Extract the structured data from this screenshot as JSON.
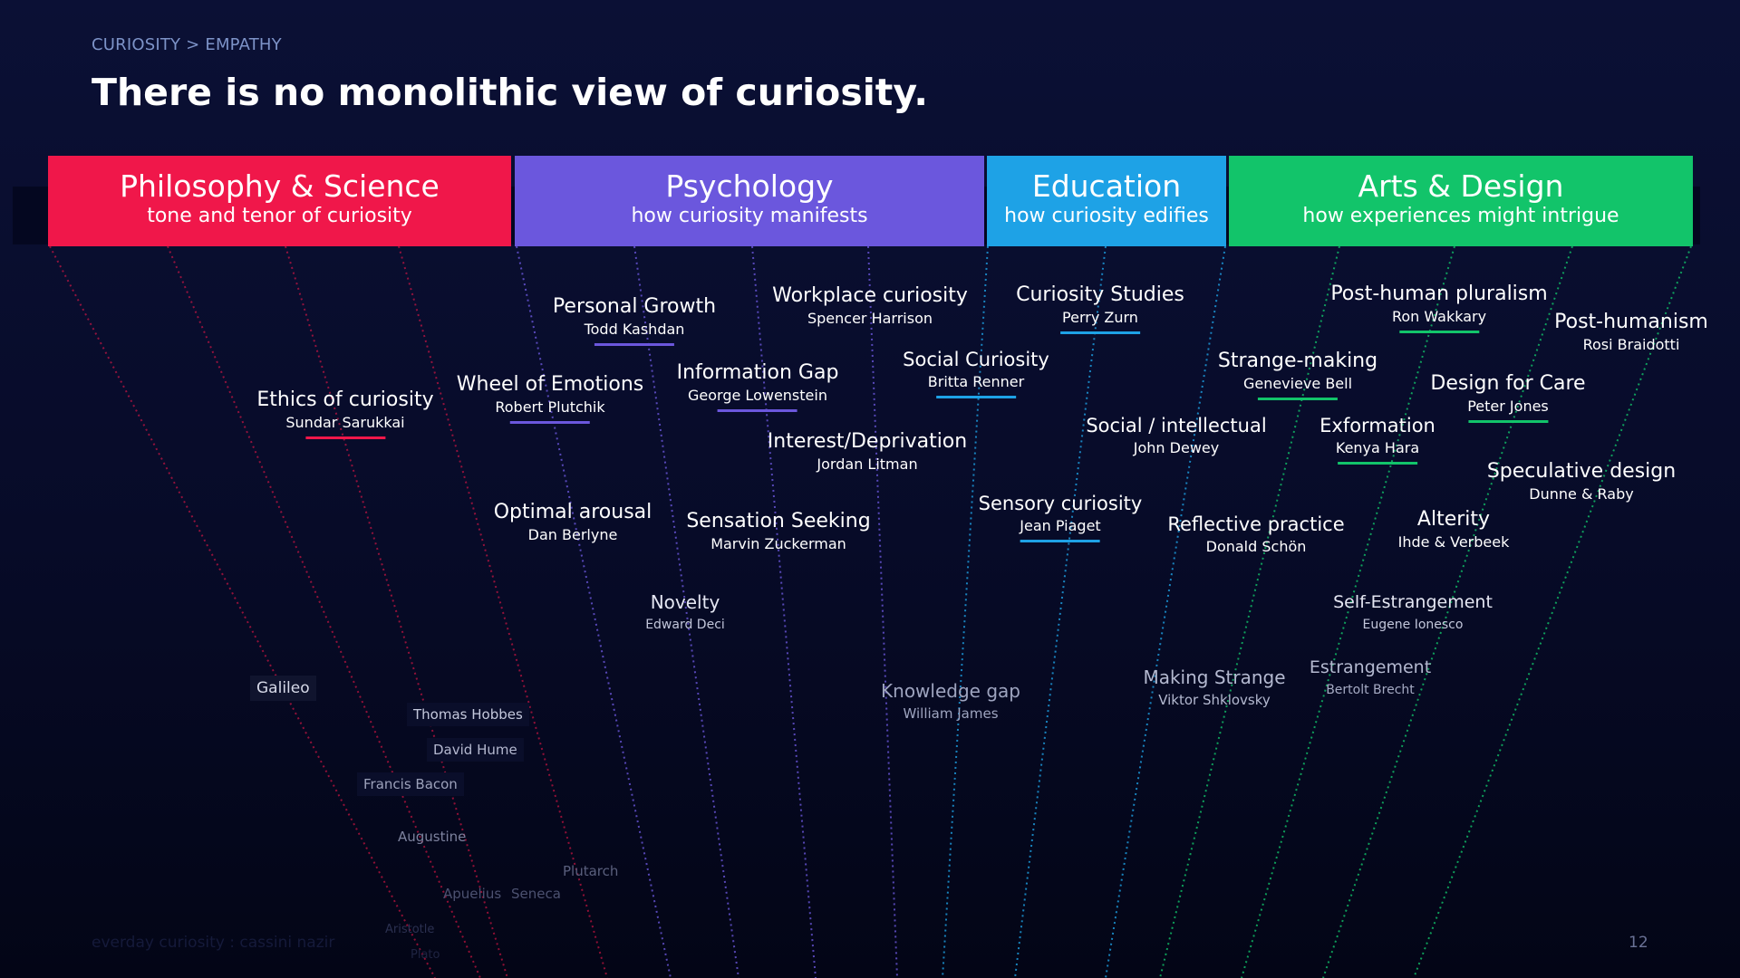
{
  "header": {
    "breadcrumb": "CURIOSITY > EMPATHY",
    "title": "There is no monolithic view of curiosity."
  },
  "categories": [
    {
      "title": "Philosophy & Science",
      "subtitle": "tone and tenor of curiosity",
      "color": "#f0174a"
    },
    {
      "title": "Psychology",
      "subtitle": "how curiosity manifests",
      "color": "#6b57dd"
    },
    {
      "title": "Education",
      "subtitle": "how curiosity edifies",
      "color": "#1ea2e6"
    },
    {
      "title": "Arts & Design",
      "subtitle": "how experiences might intrigue",
      "color": "#12c46a"
    }
  ],
  "theories": [
    {
      "name": "Ethics of curiosity",
      "author": "Sundar Sarukkai"
    },
    {
      "name": "Personal Growth",
      "author": "Todd Kashdan"
    },
    {
      "name": "Wheel of Emotions",
      "author": "Robert Plutchik"
    },
    {
      "name": "Information Gap",
      "author": "George Lowenstein"
    },
    {
      "name": "Workplace curiosity",
      "author": "Spencer Harrison"
    },
    {
      "name": "Interest/Deprivation",
      "author": "Jordan Litman"
    },
    {
      "name": "Optimal arousal",
      "author": "Dan Berlyne"
    },
    {
      "name": "Sensation Seeking",
      "author": "Marvin Zuckerman"
    },
    {
      "name": "Novelty",
      "author": "Edward Deci"
    },
    {
      "name": "Social Curiosity",
      "author": "Britta Renner"
    },
    {
      "name": "Curiosity Studies",
      "author": "Perry Zurn"
    },
    {
      "name": "Social / intellectual",
      "author": "John Dewey"
    },
    {
      "name": "Sensory curiosity",
      "author": "Jean Piaget"
    },
    {
      "name": "Knowledge gap",
      "author": "William James"
    },
    {
      "name": "Reflective practice",
      "author": "Donald Schön"
    },
    {
      "name": "Making Strange",
      "author": "Viktor Shklovsky"
    },
    {
      "name": "Post-human pluralism",
      "author": "Ron Wakkary"
    },
    {
      "name": "Strange-making",
      "author": "Genevieve Bell"
    },
    {
      "name": "Post-humanism",
      "author": "Rosi Braidotti"
    },
    {
      "name": "Design for Care",
      "author": "Peter Jones"
    },
    {
      "name": "Exformation",
      "author": "Kenya Hara"
    },
    {
      "name": "Speculative design",
      "author": "Dunne & Raby"
    },
    {
      "name": "Alterity",
      "author": "Ihde & Verbeek"
    },
    {
      "name": "Self-Estrangement",
      "author": "Eugene Ionesco"
    },
    {
      "name": "Estrangement",
      "author": "Bertolt Brecht"
    }
  ],
  "thinkers": [
    "Galileo",
    "Thomas Hobbes",
    "David Hume",
    "Francis Bacon",
    "Augustine",
    "Plutarch",
    "Apuelius",
    "Seneca",
    "Aristotle",
    "Plato"
  ],
  "footer": {
    "credit": "everday curiosity : cassini nazir",
    "page_number": "12"
  }
}
